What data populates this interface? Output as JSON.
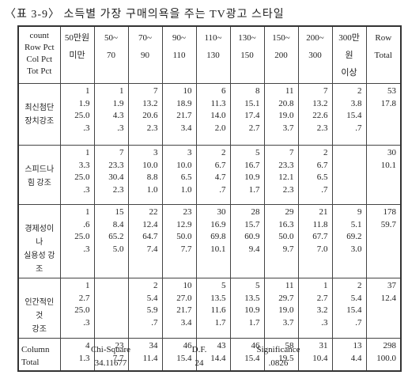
{
  "title": "〈표 3-9〉 소득별 가장 구매의욕을 주는 TV광고 스타일",
  "table": {
    "corner": [
      "count",
      "Row Pct",
      "Col Pct",
      "Tot Pct"
    ],
    "columns": [
      [
        "50만원",
        "미만"
      ],
      [
        "50~",
        "70"
      ],
      [
        "70~",
        "90"
      ],
      [
        "90~",
        "110"
      ],
      [
        "110~",
        "130"
      ],
      [
        "130~",
        "150"
      ],
      [
        "150~",
        "200"
      ],
      [
        "200~",
        "300"
      ],
      [
        "300만원",
        "이상"
      ],
      [
        "Row",
        "Total"
      ]
    ],
    "rows": [
      {
        "label": [
          "최신첨단",
          "장치강조"
        ],
        "cells": [
          [
            "1",
            "1.9",
            "25.0",
            ".3"
          ],
          [
            "1",
            "1.9",
            "4.3",
            ".3"
          ],
          [
            "7",
            "13.2",
            "20.6",
            "2.3"
          ],
          [
            "10",
            "18.9",
            "21.7",
            "3.4"
          ],
          [
            "6",
            "11.3",
            "14.0",
            "2.0"
          ],
          [
            "8",
            "15.1",
            "17.4",
            "2.7"
          ],
          [
            "11",
            "20.8",
            "19.0",
            "3.7"
          ],
          [
            "7",
            "13.2",
            "22.6",
            "2.3"
          ],
          [
            "2",
            "3.8",
            "15.4",
            ".7"
          ],
          [
            "53",
            "17.8"
          ]
        ]
      },
      {
        "label": [
          "스피드나",
          "힘 강조"
        ],
        "cells": [
          [
            "1",
            "3.3",
            "25.0",
            ".3"
          ],
          [
            "7",
            "23.3",
            "30.4",
            "2.3"
          ],
          [
            "3",
            "10.0",
            "8.8",
            "1.0"
          ],
          [
            "3",
            "10.0",
            "6.5",
            "1.0"
          ],
          [
            "2",
            "6.7",
            "4.7",
            ".7"
          ],
          [
            "5",
            "16.7",
            "10.9",
            "1.7"
          ],
          [
            "7",
            "23.3",
            "12.1",
            "2.3"
          ],
          [
            "2",
            "6.7",
            "6.5",
            ".7"
          ],
          [],
          [
            "30",
            "10.1"
          ]
        ]
      },
      {
        "label": [
          "경제성이나",
          "실용성 강조"
        ],
        "cells": [
          [
            "1",
            ".6",
            "25.0",
            ".3"
          ],
          [
            "15",
            "8.4",
            "65.2",
            "5.0"
          ],
          [
            "22",
            "12.4",
            "64.7",
            "7.4"
          ],
          [
            "23",
            "12.9",
            "50.0",
            "7.7"
          ],
          [
            "30",
            "16.9",
            "69.8",
            "10.1"
          ],
          [
            "28",
            "15.7",
            "60.9",
            "9.4"
          ],
          [
            "29",
            "16.3",
            "50.0",
            "9.7"
          ],
          [
            "21",
            "11.8",
            "67.7",
            "7.0"
          ],
          [
            "9",
            "5.1",
            "69.2",
            "3.0"
          ],
          [
            "178",
            "59.7"
          ]
        ]
      },
      {
        "label": [
          "인간적인것",
          "강조"
        ],
        "cells": [
          [
            "1",
            "2.7",
            "25.0",
            ".3"
          ],
          [],
          [
            "2",
            "5.4",
            "5.9",
            ".7"
          ],
          [
            "10",
            "27.0",
            "21.7",
            "3.4"
          ],
          [
            "5",
            "13.5",
            "11.6",
            "1.7"
          ],
          [
            "5",
            "13.5",
            "10.9",
            "1.7"
          ],
          [
            "11",
            "29.7",
            "19.0",
            "3.7"
          ],
          [
            "1",
            "2.7",
            "3.2",
            ".3"
          ],
          [
            "2",
            "5.4",
            "15.4",
            ".7"
          ],
          [
            "37",
            "12.4"
          ]
        ]
      }
    ],
    "total": {
      "label": [
        "Column",
        "Total"
      ],
      "cells": [
        [
          "4",
          "1.3"
        ],
        [
          "23",
          "7.7"
        ],
        [
          "34",
          "11.4"
        ],
        [
          "46",
          "15.4"
        ],
        [
          "43",
          "14.4"
        ],
        [
          "46",
          "15.4"
        ],
        [
          "58",
          "19.5"
        ],
        [
          "31",
          "10.4"
        ],
        [
          "13",
          "4.4"
        ],
        [
          "298",
          "100.0"
        ]
      ]
    }
  },
  "stats": [
    {
      "name": "Chi-Square",
      "value": "34.11677"
    },
    {
      "name": "D.F.",
      "value": "24"
    },
    {
      "name": "Significance",
      "value": ".0826"
    }
  ]
}
